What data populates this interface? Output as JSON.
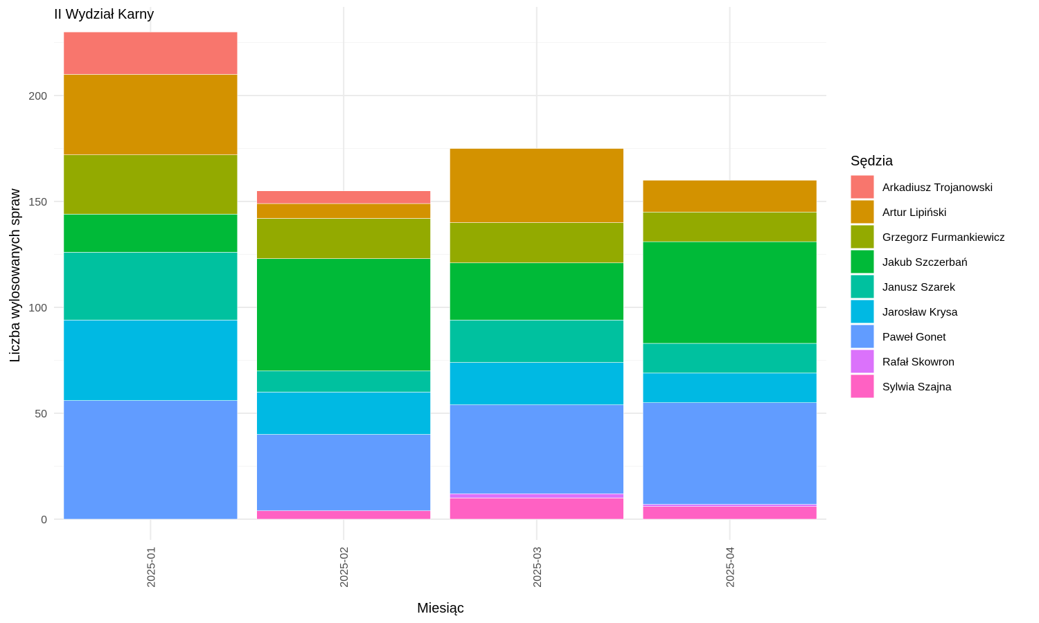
{
  "chart_data": {
    "type": "bar",
    "stacked": true,
    "title": "II Wydział Karny",
    "xlabel": "Miesiąc",
    "ylabel": "Liczba wylosowanych spraw",
    "ylim": [
      0,
      240
    ],
    "y_ticks": [
      0,
      50,
      100,
      150,
      200
    ],
    "grid": true,
    "legend_title": "Sędzia",
    "legend_position": "right",
    "categories": [
      "2025-01",
      "2025-02",
      "2025-03",
      "2025-04"
    ],
    "series": [
      {
        "name": "Sylwia Szajna",
        "color": "#FF61C3",
        "values": [
          0,
          4,
          10,
          6
        ]
      },
      {
        "name": "Rafał Skowron",
        "color": "#DB72FB",
        "values": [
          0,
          0,
          2,
          1
        ]
      },
      {
        "name": "Paweł Gonet",
        "color": "#619CFF",
        "values": [
          56,
          36,
          42,
          48
        ]
      },
      {
        "name": "Jarosław Krysa",
        "color": "#00B9E3",
        "values": [
          38,
          20,
          20,
          14
        ]
      },
      {
        "name": "Janusz Szarek",
        "color": "#00C19F",
        "values": [
          32,
          10,
          20,
          14
        ]
      },
      {
        "name": "Jakub Szczerbań",
        "color": "#00BA38",
        "values": [
          18,
          53,
          27,
          48
        ]
      },
      {
        "name": "Grzegorz Furmankiewicz",
        "color": "#93AA00",
        "values": [
          28,
          19,
          19,
          14
        ]
      },
      {
        "name": "Artur Lipiński",
        "color": "#D39200",
        "values": [
          38,
          7,
          35,
          15
        ]
      },
      {
        "name": "Arkadiusz Trojanowski",
        "color": "#F8766D",
        "values": [
          20,
          6,
          0,
          0
        ]
      }
    ],
    "legend_order": [
      "Arkadiusz Trojanowski",
      "Artur Lipiński",
      "Grzegorz Furmankiewicz",
      "Jakub Szczerbań",
      "Janusz Szarek",
      "Jarosław Krysa",
      "Paweł Gonet",
      "Rafał Skowron",
      "Sylwia Szajna"
    ]
  }
}
